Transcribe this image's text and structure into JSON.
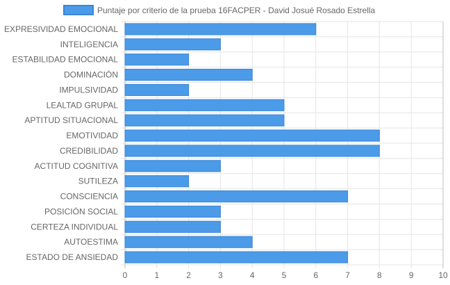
{
  "chart_data": {
    "type": "bar",
    "orientation": "horizontal",
    "title": "",
    "xlabel": "",
    "ylabel": "",
    "categories": [
      "EXPRESIVIDAD EMOCIONAL",
      "INTELIGENCIA",
      "ESTABILIDAD EMOCIONAL",
      "DOMINACIÓN",
      "IMPULSIVIDAD",
      "LEALTAD GRUPAL",
      "APTITUD SITUACIONAL",
      "EMOTIVIDAD",
      "CREDIBILIDAD",
      "ACTITUD COGNITIVA",
      "SUTILEZA",
      "CONSCIENCIA",
      "POSICIÓN SOCIAL",
      "CERTEZA INDIVIDUAL",
      "AUTOESTIMA",
      "ESTADO DE ANSIEDAD"
    ],
    "series": [
      {
        "name": "Puntaje por criterio de la prueba 16FACPER - David Josué Rosado Estrella",
        "values": [
          6,
          3,
          2,
          4,
          2,
          5,
          5,
          8,
          8,
          3,
          2,
          7,
          3,
          3,
          4,
          7
        ]
      }
    ],
    "xlim": [
      0,
      10
    ],
    "xticks": [
      0,
      1,
      2,
      3,
      4,
      5,
      6,
      7,
      8,
      9,
      10
    ],
    "grid": true,
    "legend": "top",
    "colors": {
      "bar_fill": "#4b9be8",
      "bar_stroke": "#3a86d6",
      "grid": "#e5e5e5",
      "axis": "#bdbdbd",
      "text": "#666666"
    }
  }
}
